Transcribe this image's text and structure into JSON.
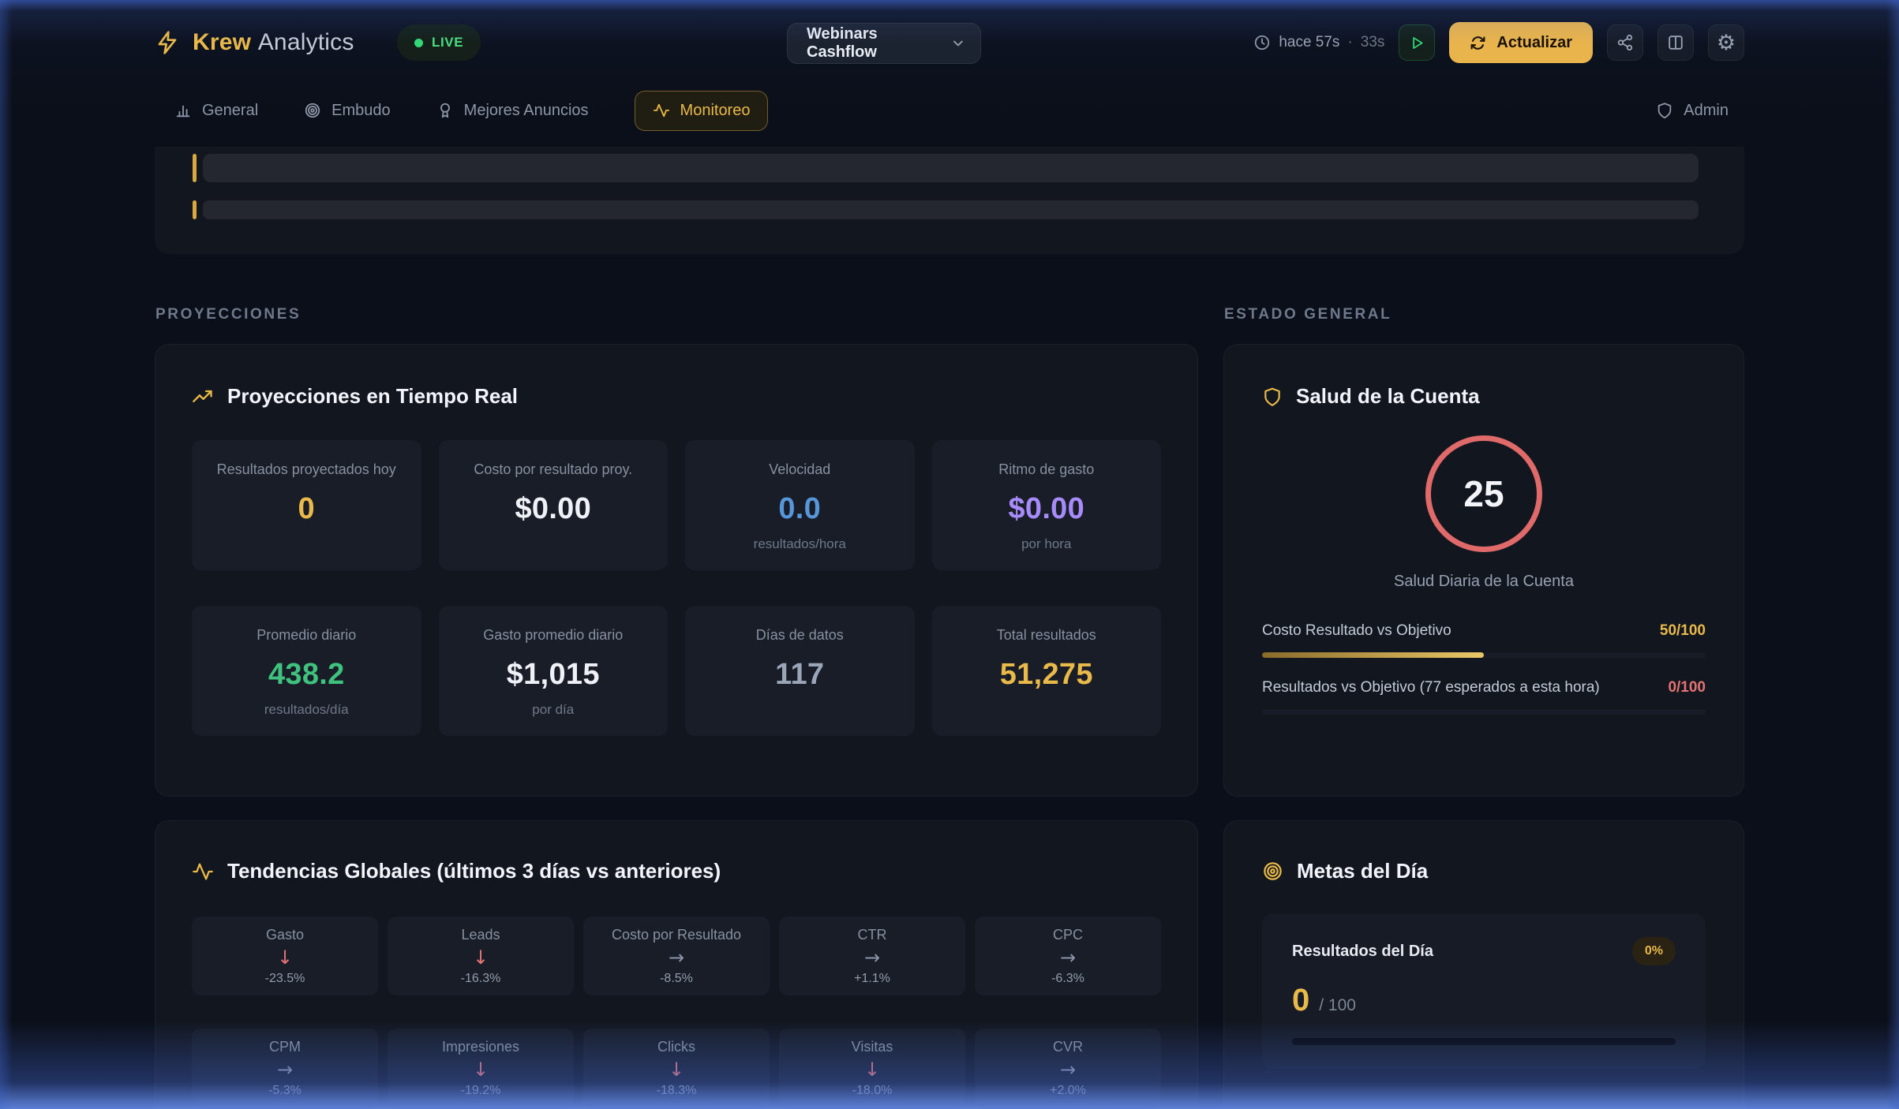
{
  "app": {
    "brand_bold": "Krew",
    "brand_light": "Analytics",
    "live_label": "LIVE"
  },
  "header": {
    "account_dropdown": {
      "value": "Webinars Cashflow"
    },
    "refresh": {
      "ago": "hace 57s",
      "separator": "·",
      "interval": "33s",
      "button_label": "Actualizar"
    }
  },
  "nav": {
    "tabs": [
      {
        "label": "General",
        "active": false
      },
      {
        "label": "Embudo",
        "active": false
      },
      {
        "label": "Mejores Anuncios",
        "active": false
      },
      {
        "label": "Monitoreo",
        "active": true
      }
    ],
    "admin_label": "Admin"
  },
  "proyecciones": {
    "section_label": "PROYECCIONES",
    "title": "Proyecciones en Tiempo Real",
    "metrics": [
      {
        "label": "Resultados proyectados hoy",
        "value": "0",
        "sub": "",
        "color": "amber"
      },
      {
        "label": "Costo por resultado proy.",
        "value": "$0.00",
        "sub": "",
        "color": "white"
      },
      {
        "label": "Velocidad",
        "value": "0.0",
        "sub": "resultados/hora",
        "color": "blue"
      },
      {
        "label": "Ritmo de gasto",
        "value": "$0.00",
        "sub": "por hora",
        "color": "purple"
      },
      {
        "label": "Promedio diario",
        "value": "438.2",
        "sub": "resultados/día",
        "color": "green"
      },
      {
        "label": "Gasto promedio diario",
        "value": "$1,015",
        "sub": "por día",
        "color": "white"
      },
      {
        "label": "Días de datos",
        "value": "117",
        "sub": "",
        "color": "slate"
      },
      {
        "label": "Total resultados",
        "value": "51,275",
        "sub": "",
        "color": "amber"
      }
    ]
  },
  "estado": {
    "section_label": "ESTADO GENERAL",
    "title": "Salud de la Cuenta",
    "gauge": {
      "value": "25",
      "caption": "Salud Diaria de la Cuenta"
    },
    "objectives": [
      {
        "label": "Costo Resultado vs Objetivo",
        "score": "50/100",
        "pct": 50,
        "color": "amber"
      },
      {
        "label": "Resultados vs Objetivo (77 esperados a esta hora)",
        "score": "0/100",
        "pct": 0,
        "color": "red"
      }
    ]
  },
  "tendencias": {
    "title": "Tendencias Globales (últimos 3 días vs anteriores)",
    "trends": [
      {
        "label": "Gasto",
        "direction": "down",
        "value": "-23.5%"
      },
      {
        "label": "Leads",
        "direction": "down",
        "value": "-16.3%"
      },
      {
        "label": "Costo por Resultado",
        "direction": "flat",
        "value": "-8.5%"
      },
      {
        "label": "CTR",
        "direction": "flat",
        "value": "+1.1%"
      },
      {
        "label": "CPC",
        "direction": "flat",
        "value": "-6.3%"
      },
      {
        "label": "CPM",
        "direction": "flat",
        "value": "-5.3%"
      },
      {
        "label": "Impresiones",
        "direction": "down",
        "value": "-19.2%"
      },
      {
        "label": "Clicks",
        "direction": "down",
        "value": "-18.3%"
      },
      {
        "label": "Visitas",
        "direction": "down",
        "value": "-18.0%"
      },
      {
        "label": "CVR",
        "direction": "flat",
        "value": "+2.0%"
      }
    ]
  },
  "metas": {
    "title": "Metas del Día",
    "goal": {
      "label": "Resultados del Día",
      "badge": "0%",
      "value": "0",
      "target": "/ 100",
      "pct": 0
    }
  },
  "colors": {
    "accent_amber": "#e9b949",
    "live_green": "#4ade80",
    "health_ring_red": "#e06a6a",
    "value_blue": "#5896db",
    "value_purple": "#a78bfa",
    "value_green": "#3fc27e",
    "trend_down_red": "#e57373",
    "edge_glow_blue": "#4064c8"
  }
}
